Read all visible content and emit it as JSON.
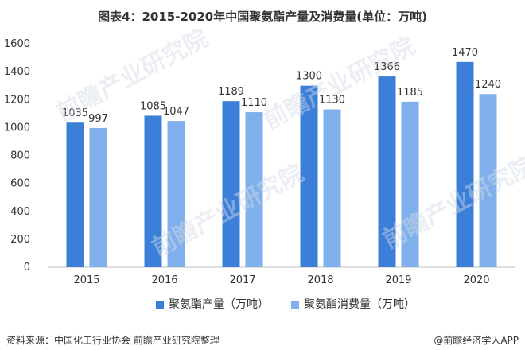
{
  "colors": {
    "production": "#3b7fd9",
    "consumption": "#7fb0ec",
    "axis": "#bfbfbf",
    "text": "#333333"
  },
  "footer": {
    "source": "资料来源：中国化工行业协会 前瞻产业研究院整理",
    "brand": "@前瞻经济学人APP"
  },
  "chart_data": {
    "type": "bar",
    "title": "图表4：2015-2020年中国聚氨酯产量及消费量(单位：万吨)",
    "categories": [
      "2015",
      "2016",
      "2017",
      "2018",
      "2019",
      "2020"
    ],
    "series": [
      {
        "name": "聚氨酯产量（万吨）",
        "values": [
          1035,
          1085,
          1189,
          1300,
          1366,
          1470
        ]
      },
      {
        "name": "聚氨酯消费量（万吨）",
        "values": [
          997,
          1047,
          1110,
          1130,
          1185,
          1240
        ]
      }
    ],
    "ylim": [
      0,
      1600
    ],
    "yticks": [
      0,
      200,
      400,
      600,
      800,
      1000,
      1200,
      1400,
      1600
    ],
    "grid": false,
    "legend": "bottom",
    "watermark": "前瞻产业研究院"
  }
}
